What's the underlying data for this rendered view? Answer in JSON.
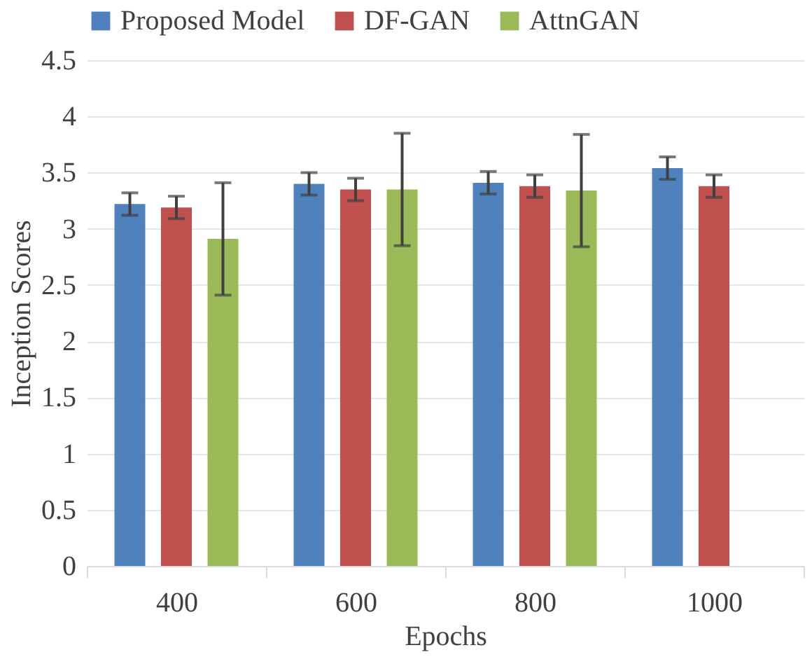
{
  "chart_data": {
    "type": "bar",
    "xlabel": "Epochs",
    "ylabel": "Inception Scores",
    "categories": [
      "400",
      "600",
      "800",
      "1000"
    ],
    "series": [
      {
        "name": "Proposed Model",
        "color": "#4f81bd",
        "values": [
          3.22,
          3.4,
          3.41,
          3.54
        ],
        "errors": [
          0.1,
          0.1,
          0.1,
          0.1
        ]
      },
      {
        "name": "DF-GAN",
        "color": "#c0504d",
        "values": [
          3.19,
          3.35,
          3.38,
          3.38
        ],
        "errors": [
          0.1,
          0.1,
          0.1,
          0.1
        ]
      },
      {
        "name": "AttnGAN",
        "color": "#9bbb59",
        "values": [
          2.91,
          3.35,
          3.34,
          null
        ],
        "errors": [
          0.5,
          0.5,
          0.5,
          null
        ]
      }
    ],
    "ylim": [
      0,
      4.5
    ],
    "yticks": [
      0,
      0.5,
      1,
      1.5,
      2,
      2.5,
      3,
      3.5,
      4,
      4.5
    ],
    "grid": "y",
    "legend": "top"
  }
}
